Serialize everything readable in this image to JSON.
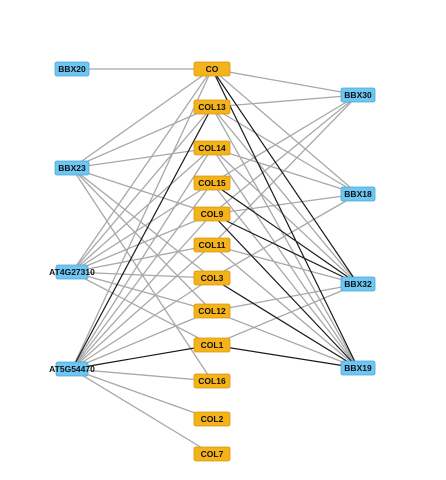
{
  "colors": {
    "blue_node": "#6ec6f2",
    "blue_border": "#4aa7d8",
    "orange_node": "#f5b31b",
    "orange_border": "#d9960a",
    "edge_gray": "#a8a8a8",
    "edge_black": "#1a1a1a"
  },
  "nodes": [
    {
      "id": "BBX20",
      "label": "BBX20",
      "group": "blue"
    },
    {
      "id": "BBX23",
      "label": "BBX23",
      "group": "blue"
    },
    {
      "id": "AT4G27310",
      "label": "AT4G27310",
      "group": "blue"
    },
    {
      "id": "AT5G54470",
      "label": "AT5G54470",
      "group": "blue"
    },
    {
      "id": "CO",
      "label": "CO",
      "group": "orange"
    },
    {
      "id": "COL13",
      "label": "COL13",
      "group": "orange"
    },
    {
      "id": "COL14",
      "label": "COL14",
      "group": "orange"
    },
    {
      "id": "COL15",
      "label": "COL15",
      "group": "orange"
    },
    {
      "id": "COL9",
      "label": "COL9",
      "group": "orange"
    },
    {
      "id": "COL11",
      "label": "COL11",
      "group": "orange"
    },
    {
      "id": "COL3",
      "label": "COL3",
      "group": "orange"
    },
    {
      "id": "COL12",
      "label": "COL12",
      "group": "orange"
    },
    {
      "id": "COL1",
      "label": "COL1",
      "group": "orange"
    },
    {
      "id": "COL16",
      "label": "COL16",
      "group": "orange"
    },
    {
      "id": "COL2",
      "label": "COL2",
      "group": "orange"
    },
    {
      "id": "COL7",
      "label": "COL7",
      "group": "orange"
    },
    {
      "id": "BBX30",
      "label": "BBX30",
      "group": "blue"
    },
    {
      "id": "BBX18",
      "label": "BBX18",
      "group": "blue"
    },
    {
      "id": "BBX32",
      "label": "BBX32",
      "group": "blue"
    },
    {
      "id": "BBX19",
      "label": "BBX19",
      "group": "blue"
    }
  ],
  "edges": [
    {
      "source": "BBX20",
      "target": "CO",
      "style": "gray"
    },
    {
      "source": "BBX23",
      "target": "CO",
      "style": "gray"
    },
    {
      "source": "BBX23",
      "target": "COL13",
      "style": "gray"
    },
    {
      "source": "BBX23",
      "target": "COL14",
      "style": "gray"
    },
    {
      "source": "BBX23",
      "target": "COL9",
      "style": "gray"
    },
    {
      "source": "BBX23",
      "target": "COL3",
      "style": "gray"
    },
    {
      "source": "BBX23",
      "target": "COL12",
      "style": "gray"
    },
    {
      "source": "BBX23",
      "target": "COL16",
      "style": "gray"
    },
    {
      "source": "AT4G27310",
      "target": "CO",
      "style": "gray"
    },
    {
      "source": "AT4G27310",
      "target": "COL13",
      "style": "gray"
    },
    {
      "source": "AT4G27310",
      "target": "COL14",
      "style": "gray"
    },
    {
      "source": "AT4G27310",
      "target": "COL15",
      "style": "gray"
    },
    {
      "source": "AT4G27310",
      "target": "COL9",
      "style": "gray"
    },
    {
      "source": "AT4G27310",
      "target": "COL11",
      "style": "gray"
    },
    {
      "source": "AT4G27310",
      "target": "COL3",
      "style": "gray"
    },
    {
      "source": "AT4G27310",
      "target": "COL12",
      "style": "gray"
    },
    {
      "source": "AT4G27310",
      "target": "COL1",
      "style": "gray"
    },
    {
      "source": "AT5G54470",
      "target": "CO",
      "style": "gray"
    },
    {
      "source": "AT5G54470",
      "target": "COL13",
      "style": "black"
    },
    {
      "source": "AT5G54470",
      "target": "COL14",
      "style": "gray"
    },
    {
      "source": "AT5G54470",
      "target": "COL15",
      "style": "gray"
    },
    {
      "source": "AT5G54470",
      "target": "COL9",
      "style": "gray"
    },
    {
      "source": "AT5G54470",
      "target": "COL11",
      "style": "gray"
    },
    {
      "source": "AT5G54470",
      "target": "COL3",
      "style": "gray"
    },
    {
      "source": "AT5G54470",
      "target": "COL12",
      "style": "gray"
    },
    {
      "source": "AT5G54470",
      "target": "COL1",
      "style": "black"
    },
    {
      "source": "AT5G54470",
      "target": "COL16",
      "style": "gray"
    },
    {
      "source": "AT5G54470",
      "target": "COL2",
      "style": "gray"
    },
    {
      "source": "AT5G54470",
      "target": "COL7",
      "style": "gray"
    },
    {
      "source": "BBX30",
      "target": "CO",
      "style": "gray"
    },
    {
      "source": "BBX30",
      "target": "COL13",
      "style": "gray"
    },
    {
      "source": "BBX30",
      "target": "COL15",
      "style": "gray"
    },
    {
      "source": "BBX30",
      "target": "COL9",
      "style": "gray"
    },
    {
      "source": "BBX30",
      "target": "COL11",
      "style": "gray"
    },
    {
      "source": "BBX18",
      "target": "CO",
      "style": "gray"
    },
    {
      "source": "BBX18",
      "target": "COL13",
      "style": "gray"
    },
    {
      "source": "BBX18",
      "target": "COL14",
      "style": "gray"
    },
    {
      "source": "BBX18",
      "target": "COL9",
      "style": "gray"
    },
    {
      "source": "BBX18",
      "target": "COL3",
      "style": "gray"
    },
    {
      "source": "BBX32",
      "target": "CO",
      "style": "black"
    },
    {
      "source": "BBX32",
      "target": "COL13",
      "style": "gray"
    },
    {
      "source": "BBX32",
      "target": "COL14",
      "style": "gray"
    },
    {
      "source": "BBX32",
      "target": "COL15",
      "style": "black"
    },
    {
      "source": "BBX32",
      "target": "COL9",
      "style": "black"
    },
    {
      "source": "BBX32",
      "target": "COL11",
      "style": "gray"
    },
    {
      "source": "BBX32",
      "target": "COL12",
      "style": "gray"
    },
    {
      "source": "BBX32",
      "target": "COL1",
      "style": "gray"
    },
    {
      "source": "BBX19",
      "target": "CO",
      "style": "black"
    },
    {
      "source": "BBX19",
      "target": "COL13",
      "style": "gray"
    },
    {
      "source": "BBX19",
      "target": "COL14",
      "style": "gray"
    },
    {
      "source": "BBX19",
      "target": "COL15",
      "style": "gray"
    },
    {
      "source": "BBX19",
      "target": "COL9",
      "style": "black"
    },
    {
      "source": "BBX19",
      "target": "COL11",
      "style": "gray"
    },
    {
      "source": "BBX19",
      "target": "COL3",
      "style": "black"
    },
    {
      "source": "BBX19",
      "target": "COL12",
      "style": "gray"
    },
    {
      "source": "BBX19",
      "target": "COL1",
      "style": "black"
    }
  ]
}
